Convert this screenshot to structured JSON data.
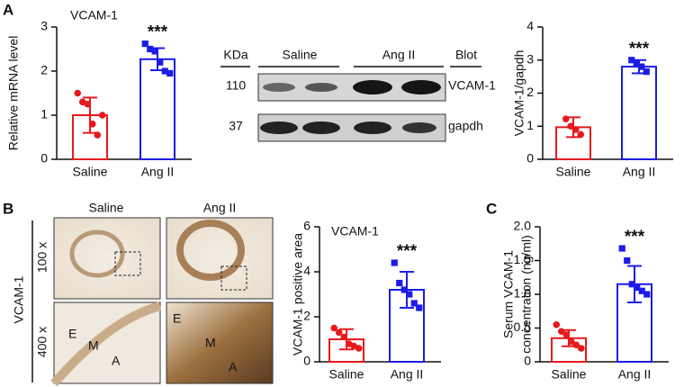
{
  "panels": [
    "A",
    "B",
    "C"
  ],
  "chart_data": [
    {
      "type": "bar",
      "title": "VCAM-1",
      "ylabel": [
        "Relative mRNA level"
      ],
      "categories": [
        "Saline",
        "Ang II"
      ],
      "colors": [
        "#e8191c",
        "#1c1ce8"
      ],
      "values": [
        1.0,
        2.27
      ],
      "errors": [
        0.4,
        0.25
      ],
      "points": [
        [
          1.5,
          1.3,
          1.25,
          0.8,
          0.55,
          1.0
        ],
        [
          2.62,
          2.5,
          2.45,
          2.2,
          2.0,
          1.95
        ]
      ],
      "ylim": [
        0,
        3
      ],
      "yticks": [
        0,
        1,
        2,
        3
      ],
      "annotation": "***"
    },
    {
      "type": "bar",
      "ylabel": [
        "VCAM-1/gapdh"
      ],
      "categories": [
        "Saline",
        "Ang II"
      ],
      "colors": [
        "#e8191c",
        "#1c1ce8"
      ],
      "values": [
        0.97,
        2.8
      ],
      "errors": [
        0.3,
        0.2
      ],
      "points": [
        [
          1.22,
          1.0,
          0.9,
          0.75
        ],
        [
          3.0,
          2.88,
          2.8,
          2.65
        ]
      ],
      "ylim": [
        0,
        4
      ],
      "yticks": [
        0,
        1,
        2,
        3,
        4
      ],
      "annotation": "***"
    },
    {
      "type": "bar",
      "title": "VCAM-1",
      "ylabel": [
        "VCAM-1 positive area"
      ],
      "categories": [
        "Saline",
        "Ang II"
      ],
      "colors": [
        "#e8191c",
        "#1c1ce8"
      ],
      "values": [
        1.0,
        3.2
      ],
      "errors": [
        0.45,
        0.8
      ],
      "points": [
        [
          1.5,
          1.3,
          1.1,
          0.8,
          0.7,
          0.6
        ],
        [
          4.4,
          3.5,
          3.2,
          3.0,
          2.6,
          2.4
        ]
      ],
      "ylim": [
        0,
        6
      ],
      "yticks": [
        0,
        2,
        4,
        6
      ],
      "annotation": "***"
    },
    {
      "type": "bar",
      "ylabel": [
        "Serum VCAM-1",
        "concentration (ng/ml)"
      ],
      "categories": [
        "Saline",
        "Ang II"
      ],
      "colors": [
        "#e8191c",
        "#1c1ce8"
      ],
      "values": [
        0.35,
        1.15
      ],
      "errors": [
        0.12,
        0.27
      ],
      "points": [
        [
          0.55,
          0.45,
          0.4,
          0.3,
          0.25,
          0.2
        ],
        [
          1.68,
          1.5,
          1.15,
          1.1,
          1.05,
          1.0
        ]
      ],
      "ylim": [
        0,
        2
      ],
      "yticks": [
        0,
        0.5,
        {
          "value": 1,
          "label": "1.0"
        },
        1.5,
        {
          "value": 2,
          "label": "2.0"
        }
      ],
      "annotation": "***"
    }
  ],
  "blot": {
    "unit": "KDa",
    "groups": [
      "Saline",
      "Ang II"
    ],
    "column": "Blot",
    "rows": [
      {
        "mw": "110",
        "label": "VCAM-1"
      },
      {
        "mw": "37",
        "label": "gapdh"
      }
    ]
  },
  "histology": {
    "columns": [
      "Saline",
      "Ang II"
    ],
    "rows": [
      "100 x",
      "400 x"
    ],
    "stain": "VCAM-1",
    "layers": [
      "E",
      "M",
      "A"
    ]
  }
}
